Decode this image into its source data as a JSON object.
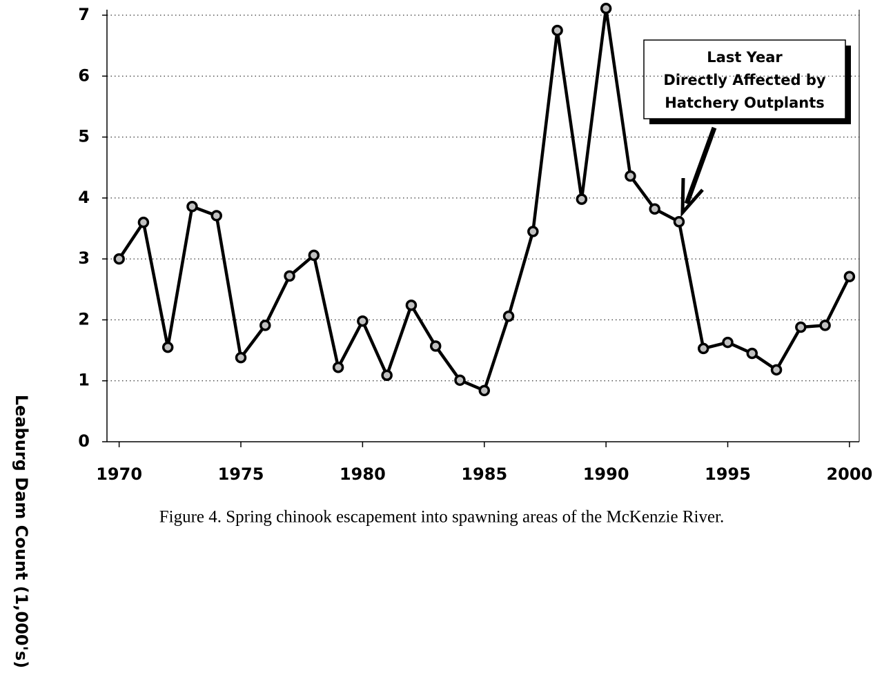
{
  "chart_data": {
    "type": "line",
    "ylabel": "Leaburg Dam Count (1,000's)",
    "caption": "Figure 4.  Spring chinook escapement into spawning areas of the McKenzie River.",
    "annotation": [
      "Last Year",
      "Directly Affected by",
      "Hatchery Outplants"
    ],
    "x": [
      1970,
      1971,
      1972,
      1973,
      1974,
      1975,
      1976,
      1977,
      1978,
      1979,
      1980,
      1981,
      1982,
      1983,
      1984,
      1985,
      1986,
      1987,
      1988,
      1989,
      1990,
      1991,
      1992,
      1993,
      1994,
      1995,
      1996,
      1997,
      1998,
      1999,
      2000
    ],
    "values": [
      3.0,
      3.6,
      1.55,
      3.86,
      3.71,
      1.38,
      1.91,
      2.72,
      3.06,
      1.22,
      1.98,
      1.09,
      2.24,
      1.57,
      1.01,
      0.84,
      2.06,
      3.45,
      6.75,
      3.98,
      7.11,
      4.36,
      3.82,
      3.61,
      1.53,
      1.63,
      1.45,
      1.18,
      1.88,
      1.91,
      2.71
    ],
    "color": "#000000",
    "marker_color": "#c0c0c0",
    "xlim": [
      1969.5,
      2000.4
    ],
    "xticks": [
      1970,
      1975,
      1980,
      1985,
      1990,
      1995,
      2000
    ],
    "ylim": [
      0,
      7
    ],
    "yticks": [
      0,
      1,
      2,
      3,
      4,
      5,
      6,
      7
    ],
    "grid": true
  }
}
